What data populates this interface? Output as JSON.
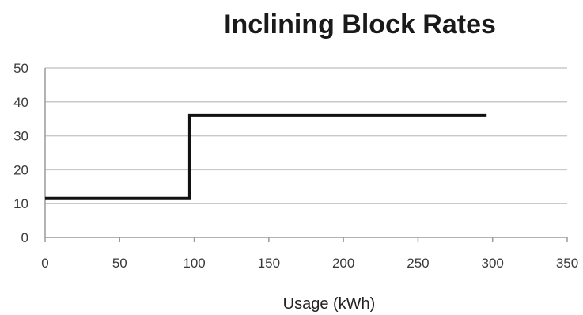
{
  "chart_data": {
    "type": "line",
    "title": "Inclining Block Rates",
    "xlabel": "Usage (kWh)",
    "ylabel": "",
    "xlim": [
      0,
      350
    ],
    "ylim": [
      0,
      50
    ],
    "x_ticks": [
      0,
      50,
      100,
      150,
      200,
      250,
      300,
      350
    ],
    "y_ticks": [
      0,
      10,
      20,
      30,
      40,
      50
    ],
    "grid": "horizontal",
    "legend": "none",
    "series": [
      {
        "color": "#111111",
        "step": true,
        "points": [
          {
            "x": 0,
            "y": 11.5
          },
          {
            "x": 97,
            "y": 11.5
          },
          {
            "x": 97,
            "y": 36
          },
          {
            "x": 296,
            "y": 36
          }
        ]
      }
    ]
  }
}
